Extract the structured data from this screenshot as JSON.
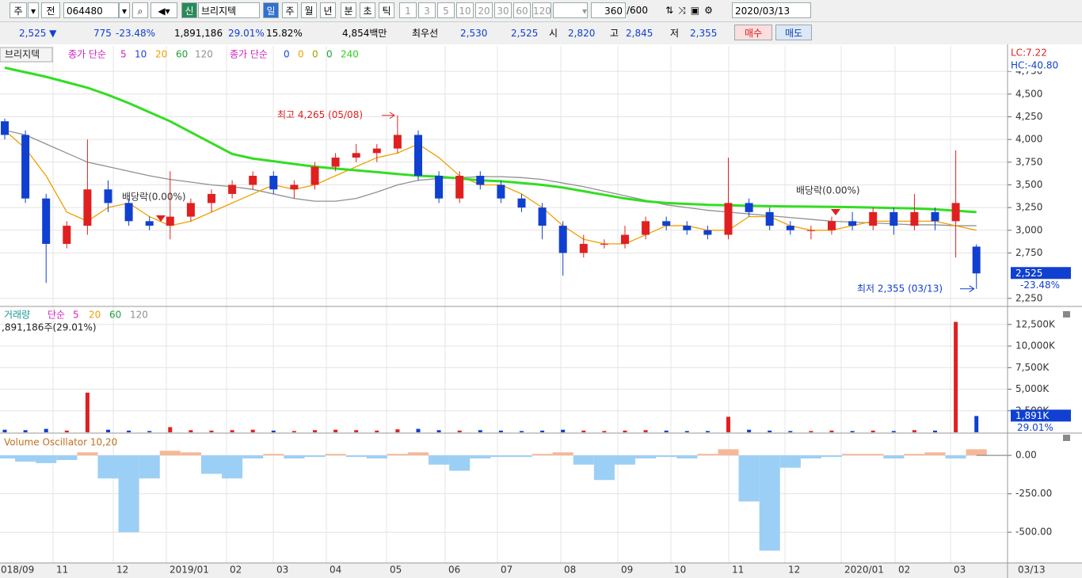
{
  "toolbar": {
    "market": "주",
    "prev": "전",
    "code": "064480",
    "credit": "신",
    "name": "브리지텍",
    "periods": [
      "일",
      "주",
      "월",
      "년",
      "분",
      "초",
      "틱"
    ],
    "ticks": [
      "1",
      "3",
      "5",
      "10",
      "20",
      "30",
      "60",
      "120"
    ],
    "count": "360",
    "max": "/600",
    "date": "2020/03/13"
  },
  "quote": {
    "price": "2,525 ▼",
    "change": "775",
    "change_pct": "-23.48%",
    "volume": "1,891,186",
    "volume_pct": "29.01%",
    "turnover": "15.82%",
    "amount": "4,854백만",
    "best_label": "최우선",
    "ask": "2,530",
    "bid": "2,525",
    "open_label": "시",
    "open": "2,820",
    "high_label": "고",
    "high": "2,845",
    "low_label": "저",
    "low": "2,355",
    "buy": "매수",
    "sell": "매도"
  },
  "chart_data": [
    {
      "type": "candlestick",
      "title": "브리지텍",
      "legend_label": "종가 단순",
      "legend": [
        {
          "text": "5",
          "color": "#d020c0"
        },
        {
          "text": "10",
          "color": "#2040e0"
        },
        {
          "text": "20",
          "color": "#f0a000"
        },
        {
          "text": "60",
          "color": "#20a040"
        },
        {
          "text": "120",
          "color": "#909090"
        }
      ],
      "legend_label2": "종가 단순",
      "legend2": [
        {
          "text": "0",
          "color": "#2040e0"
        },
        {
          "text": "0",
          "color": "#f0a000"
        },
        {
          "text": "0",
          "color": "#a0a000"
        },
        {
          "text": "0",
          "color": "#20a040"
        },
        {
          "text": "240",
          "color": "#30d020"
        }
      ],
      "lc": "LC:7.22",
      "hc": "HC:-40.80",
      "open": [
        4200,
        4050,
        3350,
        2850,
        3050,
        3450,
        3300,
        3100,
        3050,
        3150,
        3300,
        3400,
        3500,
        3600,
        3450,
        3500,
        3700,
        3800,
        3850,
        3900,
        4050,
        3600,
        3350,
        3600,
        3500,
        3350,
        3250,
        3050,
        2750,
        2850,
        2850,
        2950,
        3100,
        3050,
        3000,
        2950,
        3300,
        3200,
        3050,
        3000,
        3000,
        3100,
        3050,
        3200,
        3050,
        3200,
        3100,
        2820
      ],
      "high": [
        4230,
        4100,
        3400,
        3100,
        4000,
        3550,
        3350,
        3150,
        3650,
        3350,
        3450,
        3550,
        3650,
        3650,
        3550,
        3750,
        3850,
        3950,
        3950,
        4265,
        4100,
        3650,
        3650,
        3650,
        3550,
        3400,
        3300,
        3100,
        2950,
        2900,
        3050,
        3150,
        3150,
        3100,
        3050,
        3800,
        3350,
        3250,
        3100,
        3050,
        3150,
        3200,
        3250,
        3250,
        3400,
        3250,
        3880,
        2845
      ],
      "low": [
        4000,
        3300,
        2420,
        2800,
        2950,
        3200,
        3050,
        3000,
        2900,
        3100,
        3200,
        3350,
        3450,
        3400,
        3350,
        3450,
        3650,
        3750,
        3750,
        3850,
        3550,
        3300,
        3300,
        3450,
        3300,
        3200,
        2900,
        2500,
        2700,
        2800,
        2800,
        2900,
        3000,
        2950,
        2900,
        2900,
        3150,
        3000,
        2950,
        2900,
        2950,
        3000,
        3000,
        2950,
        3000,
        3000,
        2700,
        2355
      ],
      "close": [
        4050,
        3350,
        2850,
        3050,
        3450,
        3300,
        3100,
        3050,
        3150,
        3300,
        3400,
        3500,
        3600,
        3450,
        3500,
        3700,
        3800,
        3850,
        3900,
        4050,
        3600,
        3350,
        3600,
        3500,
        3350,
        3250,
        3050,
        2750,
        2850,
        2850,
        2950,
        3100,
        3050,
        3000,
        2950,
        3300,
        3200,
        3050,
        3000,
        3000,
        3100,
        3050,
        3200,
        3050,
        3200,
        3100,
        3300,
        2525
      ],
      "up_color": "#e02020",
      "down_color": "#1040d0",
      "series": [
        {
          "color": "#909090",
          "values": [
            4100,
            4050,
            3950,
            3850,
            3750,
            3700,
            3650,
            3600,
            3560,
            3530,
            3500,
            3480,
            3450,
            3400,
            3350,
            3320,
            3320,
            3350,
            3420,
            3500,
            3550,
            3570,
            3580,
            3590,
            3590,
            3580,
            3560,
            3520,
            3480,
            3430,
            3380,
            3330,
            3280,
            3250,
            3220,
            3200,
            3180,
            3160,
            3140,
            3120,
            3100,
            3090,
            3080,
            3070,
            3060,
            3060,
            3050,
            3050
          ]
        },
        {
          "color": "#f0a000",
          "values": [
            4100,
            3900,
            3600,
            3200,
            3100,
            3250,
            3300,
            3150,
            3050,
            3100,
            3200,
            3300,
            3400,
            3500,
            3450,
            3500,
            3600,
            3700,
            3800,
            3850,
            3950,
            3800,
            3600,
            3500,
            3500,
            3400,
            3250,
            3050,
            2900,
            2850,
            2850,
            2950,
            3050,
            3050,
            3000,
            3000,
            3150,
            3150,
            3050,
            3000,
            3000,
            3050,
            3100,
            3100,
            3100,
            3100,
            3050,
            3000
          ]
        },
        {
          "color": "#33dd22",
          "values": [
            4790,
            4740,
            4690,
            4630,
            4570,
            4490,
            4400,
            4300,
            4200,
            4080,
            3960,
            3840,
            3790,
            3760,
            3730,
            3700,
            3680,
            3660,
            3640,
            3620,
            3600,
            3590,
            3570,
            3550,
            3540,
            3520,
            3500,
            3470,
            3430,
            3390,
            3350,
            3320,
            3300,
            3290,
            3280,
            3275,
            3270,
            3265,
            3262,
            3260,
            3258,
            3255,
            3250,
            3245,
            3240,
            3230,
            3215,
            3200
          ]
        }
      ],
      "ylim": [
        2170,
        5030
      ],
      "yticks": [
        {
          "value": 4750,
          "label": "4,750"
        },
        {
          "value": 4500,
          "label": "4,500"
        },
        {
          "value": 4250,
          "label": "4,250"
        },
        {
          "value": 4000,
          "label": "4,000"
        },
        {
          "value": 3750,
          "label": "3,750"
        },
        {
          "value": 3500,
          "label": "3,500"
        },
        {
          "value": 3250,
          "label": "3,250"
        },
        {
          "value": 3000,
          "label": "3,000"
        },
        {
          "value": 2750,
          "label": "2,750"
        },
        {
          "value": 2250,
          "label": "2,250"
        }
      ],
      "price_tag": "2,525",
      "change_tag": "-23.48%",
      "annotations": [
        "최고 4,265 (05/08)",
        "최저 2,355 (03/13)",
        "배당락(0.00%)",
        "배당락(0.00%)"
      ],
      "grid": true
    },
    {
      "type": "bar",
      "title": "거래량",
      "legend_label": "단순",
      "legend": [
        {
          "text": "5",
          "color": "#d020c0"
        },
        {
          "text": "20",
          "color": "#f0a000"
        },
        {
          "text": "60",
          "color": "#20a040"
        },
        {
          "text": "120",
          "color": "#909090"
        }
      ],
      "subtitle": ",891,186주(29.01%)",
      "values": [
        300,
        250,
        400,
        200,
        4600,
        300,
        200,
        150,
        600,
        250,
        200,
        250,
        300,
        200,
        150,
        250,
        300,
        250,
        200,
        350,
        400,
        250,
        200,
        250,
        200,
        150,
        200,
        300,
        200,
        150,
        200,
        250,
        200,
        150,
        150,
        1800,
        300,
        200,
        150,
        150,
        200,
        150,
        200,
        150,
        250,
        200,
        12800,
        1891.186
      ],
      "up_color": "#e02020",
      "down_color": "#1040d0",
      "ylim": [
        0,
        14500
      ],
      "yticks": [
        {
          "value": 12500,
          "label": "12,500K"
        },
        {
          "value": 10000,
          "label": "10,000K"
        },
        {
          "value": 7500,
          "label": "7,500K"
        },
        {
          "value": 5000,
          "label": "5,000K"
        },
        {
          "value": 2500,
          "label": "2,500K"
        }
      ],
      "volume_tag": "1,891K",
      "pct_tag": "29.01%",
      "grid": true
    },
    {
      "type": "bar",
      "title": "Volume Oscillator 10,20",
      "values": [
        -20,
        -40,
        -50,
        -30,
        20,
        -150,
        -500,
        -150,
        30,
        20,
        -120,
        -150,
        -20,
        10,
        -20,
        -10,
        10,
        -10,
        -20,
        10,
        20,
        -60,
        -100,
        -20,
        -10,
        -10,
        10,
        20,
        -60,
        -160,
        -60,
        -20,
        -10,
        -20,
        10,
        40,
        -300,
        -620,
        -80,
        -20,
        -10,
        10,
        10,
        -20,
        10,
        20,
        -20,
        40
      ],
      "pos_color": "#f5b898",
      "neg_color": "#9ccff5",
      "ylim": [
        -700,
        140
      ],
      "yticks": [
        {
          "value": 0,
          "label": "0.00"
        },
        {
          "value": -250,
          "label": "-250.00"
        },
        {
          "value": -500,
          "label": "-500.00"
        }
      ],
      "x_labels": [
        "018/09",
        "11",
        "12",
        "2019/01",
        "02",
        "03",
        "04",
        "05",
        "06",
        "07",
        "08",
        "09",
        "10",
        "11",
        "12",
        "2020/01",
        "02",
        "03",
        "03/13"
      ],
      "grid": true
    }
  ]
}
